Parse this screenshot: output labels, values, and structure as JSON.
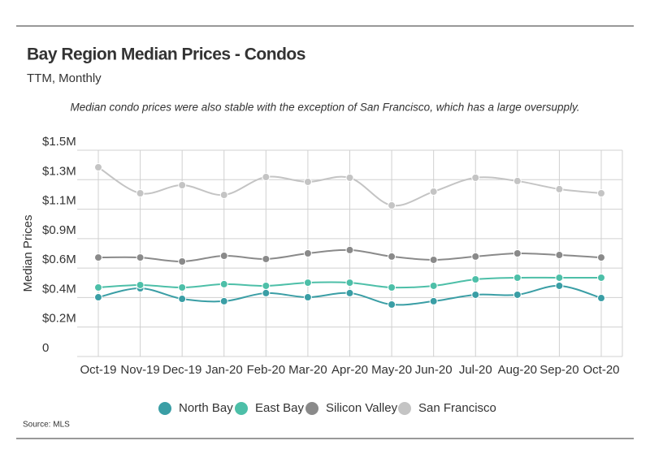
{
  "chart_data": {
    "type": "line",
    "title": "Bay Region Median Prices - Condos",
    "subtitle": "TTM, Monthly",
    "annotation": "Median condo prices were also stable with the exception of San Francisco, which has a large oversupply.",
    "y_label": "Median Prices",
    "source": "Source:  MLS",
    "categories": [
      "Oct-19",
      "Nov-19",
      "Dec-19",
      "Jan-20",
      "Feb-20",
      "Mar-20",
      "Apr-20",
      "May-20",
      "Jun-20",
      "Jul-20",
      "Aug-20",
      "Sep-20",
      "Oct-20"
    ],
    "ylim": [
      0,
      1500000
    ],
    "yticks": [
      0,
      {
        "value": 214286,
        "label": "$0.2M"
      },
      {
        "value": 428571,
        "label": "$0.4M"
      },
      {
        "value": 642857,
        "label": "$0.6M"
      },
      {
        "value": 857143,
        "label": "$0.9M"
      },
      {
        "value": 1071429,
        "label": "$1.1M"
      },
      {
        "value": 1285714,
        "label": "$1.3M"
      },
      {
        "value": 1500000,
        "label": "$1.5M"
      }
    ],
    "grid": true,
    "series": [
      {
        "name": "North Bay",
        "color": "#3a9ea5",
        "values": [
          431000,
          496000,
          419000,
          402000,
          461000,
          431000,
          461000,
          378000,
          402000,
          449000,
          449000,
          514000,
          425000
        ]
      },
      {
        "name": "East Bay",
        "color": "#4dbfa8",
        "values": [
          502000,
          520000,
          502000,
          526000,
          514000,
          537000,
          537000,
          502000,
          514000,
          561000,
          573000,
          573000,
          573000
        ]
      },
      {
        "name": "Silicon Valley",
        "color": "#8a8a8a",
        "values": [
          720000,
          720000,
          691000,
          732000,
          709000,
          750000,
          774000,
          727000,
          703000,
          727000,
          750000,
          738000,
          720000
        ]
      },
      {
        "name": "San Francisco",
        "color": "#c4c4c4",
        "values": [
          1376000,
          1187000,
          1246000,
          1175000,
          1305000,
          1270000,
          1300000,
          1099000,
          1199000,
          1300000,
          1276000,
          1217000,
          1187000
        ]
      }
    ]
  }
}
